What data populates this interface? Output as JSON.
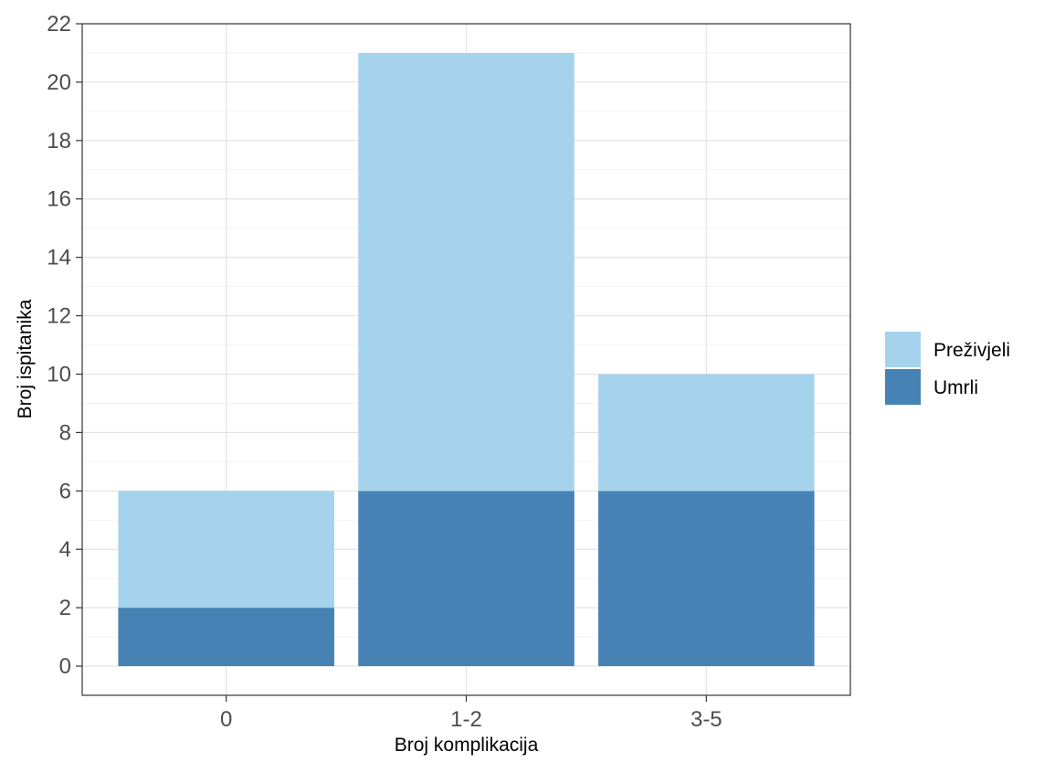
{
  "chart_data": {
    "type": "bar",
    "stacked": true,
    "categories": [
      "0",
      "1-2",
      "3-5"
    ],
    "series": [
      {
        "name": "Umrli",
        "values": [
          2,
          6,
          6
        ],
        "color": "#4682b4"
      },
      {
        "name": "Preživjeli",
        "values": [
          4,
          15,
          4
        ],
        "color": "#a6d3ec"
      }
    ],
    "totals": [
      6,
      21,
      10
    ],
    "xlabel": "Broj komplikacija",
    "ylabel": "Broj ispitanika",
    "ylim": [
      -1,
      22
    ],
    "yticks": [
      "0",
      "2",
      "4",
      "6",
      "8",
      "10",
      "12",
      "14",
      "16",
      "18",
      "20",
      "22"
    ],
    "legend": {
      "position": "right",
      "entries": [
        "Preživjeli",
        "Umrli"
      ]
    },
    "grid": true
  }
}
